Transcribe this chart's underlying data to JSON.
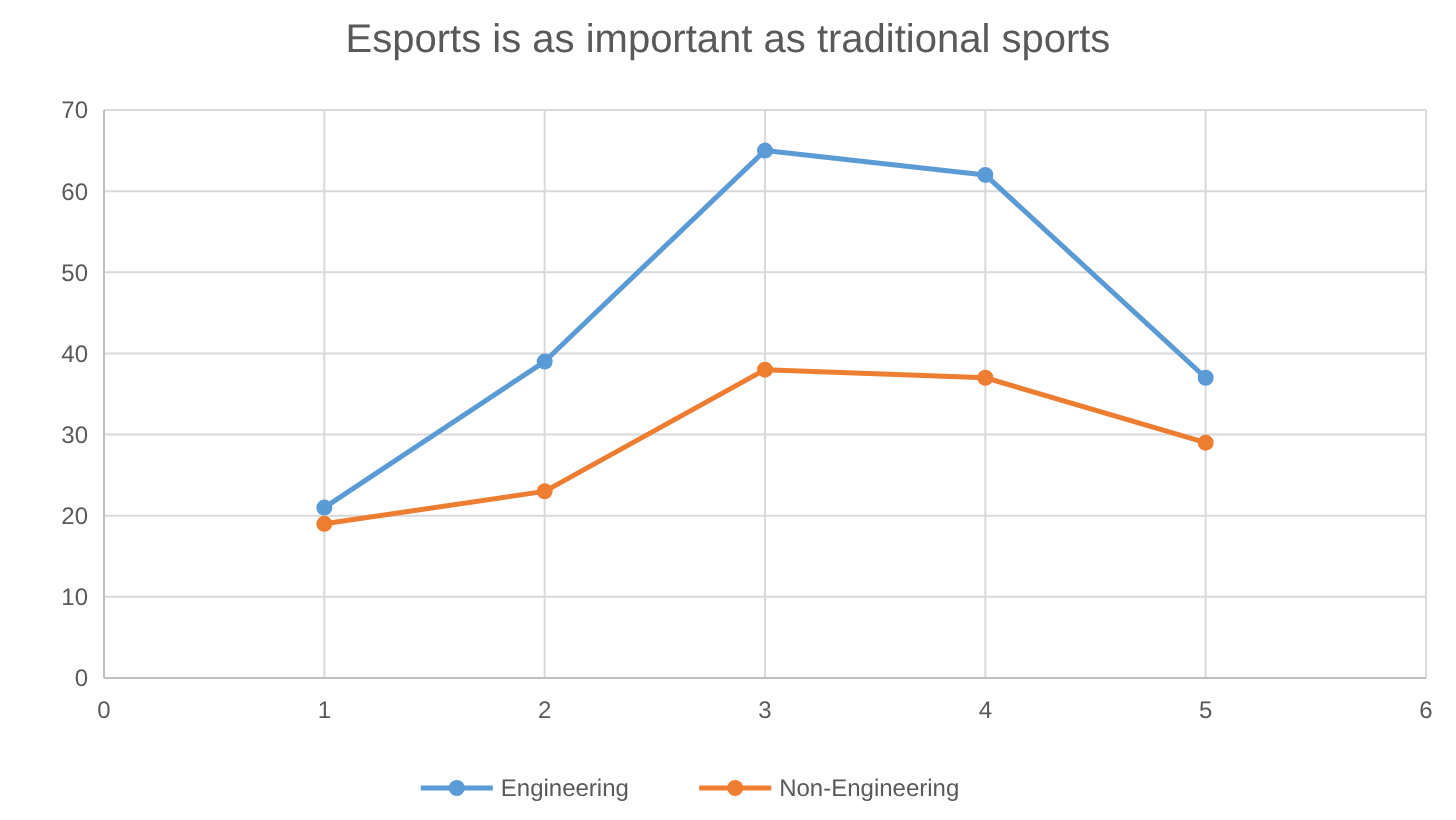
{
  "chart_data": {
    "type": "line",
    "title": "Esports is as important as traditional sports",
    "x": [
      1,
      2,
      3,
      4,
      5
    ],
    "series": [
      {
        "name": "Engineering",
        "color": "#5b9bd5",
        "values": [
          21,
          39,
          65,
          62,
          37
        ]
      },
      {
        "name": "Non-Engineering",
        "color": "#ed7d31",
        "values": [
          19,
          23,
          38,
          37,
          29
        ]
      }
    ],
    "xlim": [
      0,
      6
    ],
    "xticks": [
      0,
      1,
      2,
      3,
      4,
      5,
      6
    ],
    "ylim": [
      0,
      70
    ],
    "yticks": [
      0,
      10,
      20,
      30,
      40,
      50,
      60,
      70
    ],
    "grid": true,
    "legend": "bottom",
    "marker": "circle",
    "line_style": "solid"
  }
}
